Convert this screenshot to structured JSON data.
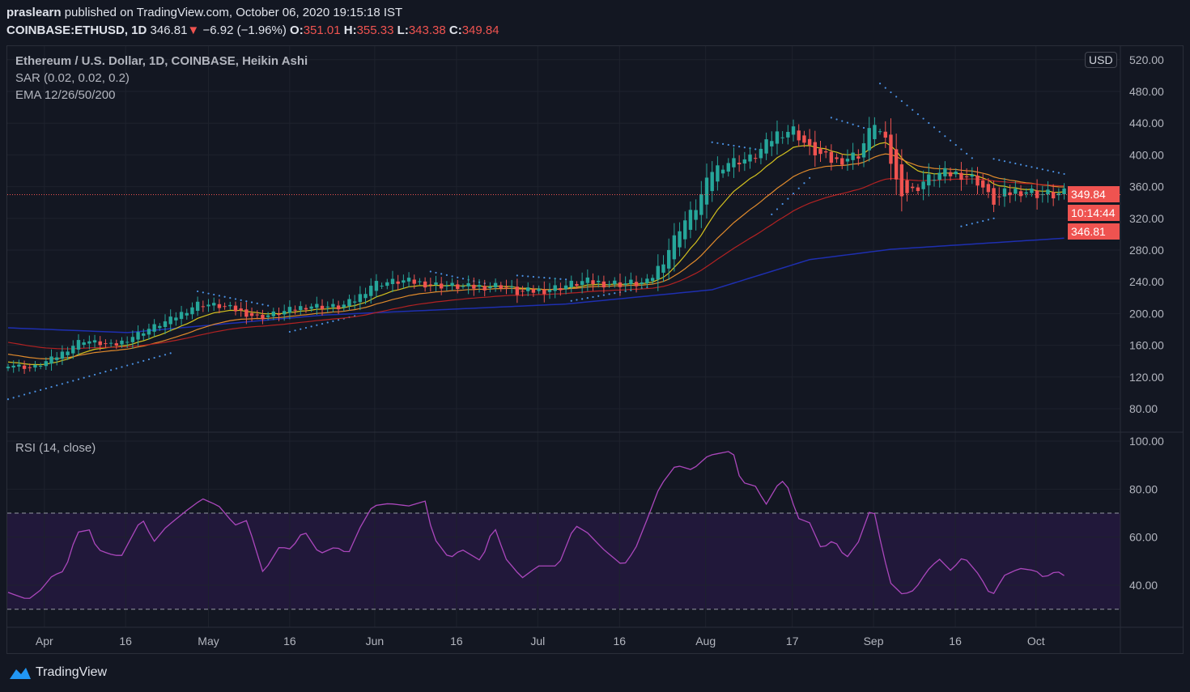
{
  "header": {
    "author": "praslearn",
    "published": "published on TradingView.com, October 06, 2020 19:15:18 IST",
    "symbol": "COINBASE:ETHUSD, 1D",
    "last": "346.81",
    "change": "−6.92 (−1.96%)",
    "o_label": "O:",
    "o": "351.01",
    "h_label": "H:",
    "h": "355.33",
    "l_label": "L:",
    "l": "343.38",
    "c_label": "C:",
    "c": "349.84"
  },
  "legend": {
    "title": "Ethereum / U.S. Dollar, 1D, COINBASE, Heikin Ashi",
    "sar": "SAR (0.02, 0.02, 0.2)",
    "ema": "EMA 12/26/50/200",
    "rsi": "RSI (14, close)"
  },
  "currency": "USD",
  "tags": {
    "close": "349.84",
    "countdown": "10:14:44",
    "last": "346.81"
  },
  "brand": "TradingView",
  "colors": {
    "up": "#26a69a",
    "down": "#ef5350",
    "ema12": "#d4c21f",
    "ema26": "#e08a2c",
    "ema50": "#b22222",
    "ema200": "#1e2fb0",
    "sar": "#4a90e2",
    "rsi": "#ab47bc"
  },
  "chart_data": {
    "type": "candlestick",
    "start_date": "2020-03-25",
    "price_ylim": [
      60,
      520
    ],
    "price_ticks": [
      "520.00",
      "480.00",
      "440.00",
      "400.00",
      "360.00",
      "320.00",
      "280.00",
      "240.00",
      "200.00",
      "160.00",
      "120.00",
      "80.00"
    ],
    "rsi_ylim": [
      25,
      104
    ],
    "rsi_ticks": [
      "100.00",
      "80.00",
      "60.00",
      "40.00"
    ],
    "rsi_bands": [
      30,
      70
    ],
    "time_ticks": [
      {
        "day": 6.7,
        "label": "Apr"
      },
      {
        "day": 21.7,
        "label": "16"
      },
      {
        "day": 37,
        "label": "May"
      },
      {
        "day": 52,
        "label": "16"
      },
      {
        "day": 67.7,
        "label": "Jun"
      },
      {
        "day": 82.8,
        "label": "16"
      },
      {
        "day": 97.8,
        "label": "Jul"
      },
      {
        "day": 112.9,
        "label": "16"
      },
      {
        "day": 128.8,
        "label": "Aug"
      },
      {
        "day": 144.8,
        "label": "17"
      },
      {
        "day": 159.8,
        "label": "Sep"
      },
      {
        "day": 174.9,
        "label": "16"
      },
      {
        "day": 189.8,
        "label": "Oct"
      }
    ],
    "close": [
      [
        0,
        136
      ],
      [
        4.5,
        131
      ],
      [
        9,
        146
      ],
      [
        13.5,
        167
      ],
      [
        19.4,
        159
      ],
      [
        24.7,
        177
      ],
      [
        29.9,
        192
      ],
      [
        35.1,
        213
      ],
      [
        40.4,
        208
      ],
      [
        46.3,
        195
      ],
      [
        50.8,
        202
      ],
      [
        55.3,
        210
      ],
      [
        61.3,
        208
      ],
      [
        64.3,
        218
      ],
      [
        67.3,
        238
      ],
      [
        73.2,
        241
      ],
      [
        79.2,
        236
      ],
      [
        85.2,
        233
      ],
      [
        91.2,
        236
      ],
      [
        94.2,
        226
      ],
      [
        100.1,
        231
      ],
      [
        106.1,
        240
      ],
      [
        112.1,
        238
      ],
      [
        118.1,
        238
      ],
      [
        121.1,
        269
      ],
      [
        124.1,
        310
      ],
      [
        127.1,
        335
      ],
      [
        130,
        381
      ],
      [
        133,
        391
      ],
      [
        137.5,
        396
      ],
      [
        142,
        427
      ],
      [
        145,
        432
      ],
      [
        148,
        407
      ],
      [
        152.5,
        391
      ],
      [
        157,
        401
      ],
      [
        160,
        442
      ],
      [
        162.2,
        412
      ],
      [
        164.4,
        356
      ],
      [
        166.7,
        352
      ],
      [
        168.9,
        366
      ],
      [
        171.9,
        376
      ],
      [
        176.4,
        376
      ],
      [
        179.4,
        366
      ],
      [
        181.6,
        340
      ],
      [
        183.9,
        350
      ],
      [
        186.8,
        356
      ],
      [
        191.3,
        350
      ],
      [
        195,
        349.84
      ]
    ],
    "ema200": [
      [
        0,
        182
      ],
      [
        22,
        176
      ],
      [
        58,
        198
      ],
      [
        103,
        212
      ],
      [
        130,
        230
      ],
      [
        148,
        268
      ],
      [
        163,
        281
      ],
      [
        195,
        295
      ]
    ],
    "sar_segments": [
      [
        0,
        30,
        92,
        150
      ],
      [
        35,
        48,
        228,
        210
      ],
      [
        52,
        64,
        177,
        197
      ],
      [
        78,
        88,
        253,
        238
      ],
      [
        94,
        103,
        248,
        243
      ],
      [
        104,
        118,
        216,
        233
      ],
      [
        130,
        140,
        416,
        405
      ],
      [
        141,
        148,
        325,
        371
      ],
      [
        152,
        159,
        447,
        432
      ],
      [
        161,
        178,
        490,
        396
      ],
      [
        176,
        182,
        310,
        320
      ],
      [
        182,
        195,
        395,
        376
      ]
    ],
    "rsi": [
      [
        0,
        37
      ],
      [
        3.7,
        34
      ],
      [
        6,
        38
      ],
      [
        8.2,
        44
      ],
      [
        10.5,
        46
      ],
      [
        12.7,
        62
      ],
      [
        15,
        63
      ],
      [
        16.4,
        55
      ],
      [
        18.7,
        53
      ],
      [
        20.9,
        52
      ],
      [
        24.7,
        68
      ],
      [
        26.9,
        58
      ],
      [
        29.1,
        64
      ],
      [
        32.9,
        71
      ],
      [
        35.9,
        76
      ],
      [
        38.9,
        73
      ],
      [
        41.9,
        65
      ],
      [
        44.1,
        67
      ],
      [
        47.1,
        45
      ],
      [
        50.1,
        56
      ],
      [
        52.3,
        55
      ],
      [
        54.6,
        63
      ],
      [
        57.5,
        53
      ],
      [
        60.5,
        56
      ],
      [
        62.8,
        53
      ],
      [
        65,
        64
      ],
      [
        67.3,
        73
      ],
      [
        70.3,
        74
      ],
      [
        74,
        73
      ],
      [
        77,
        75
      ],
      [
        78.5,
        60
      ],
      [
        81.5,
        51
      ],
      [
        83.7,
        55
      ],
      [
        87.4,
        50
      ],
      [
        89.7,
        65
      ],
      [
        91.9,
        51
      ],
      [
        94.9,
        43
      ],
      [
        97.9,
        48
      ],
      [
        101.6,
        48
      ],
      [
        104.6,
        65
      ],
      [
        106.9,
        62
      ],
      [
        109.9,
        55
      ],
      [
        113.6,
        48
      ],
      [
        115.8,
        55
      ],
      [
        118.1,
        68
      ],
      [
        120.3,
        81
      ],
      [
        123.3,
        90
      ],
      [
        126.3,
        88
      ],
      [
        129.3,
        94
      ],
      [
        133.8,
        96
      ],
      [
        135.3,
        83
      ],
      [
        138.3,
        81
      ],
      [
        139.8,
        73
      ],
      [
        142.7,
        84
      ],
      [
        144.2,
        80
      ],
      [
        145.7,
        68
      ],
      [
        148,
        66
      ],
      [
        150.2,
        55
      ],
      [
        152.5,
        59
      ],
      [
        154.7,
        51
      ],
      [
        157,
        58
      ],
      [
        159.6,
        74
      ],
      [
        161.4,
        55
      ],
      [
        162.9,
        41
      ],
      [
        165.2,
        36
      ],
      [
        167.4,
        38
      ],
      [
        169.7,
        46
      ],
      [
        171.9,
        51
      ],
      [
        174.1,
        46
      ],
      [
        176.4,
        52
      ],
      [
        179.4,
        44
      ],
      [
        181.6,
        35
      ],
      [
        183.9,
        44
      ],
      [
        186.8,
        47
      ],
      [
        189.8,
        46
      ],
      [
        191.3,
        43
      ],
      [
        193.6,
        46
      ],
      [
        195,
        44
      ]
    ]
  }
}
